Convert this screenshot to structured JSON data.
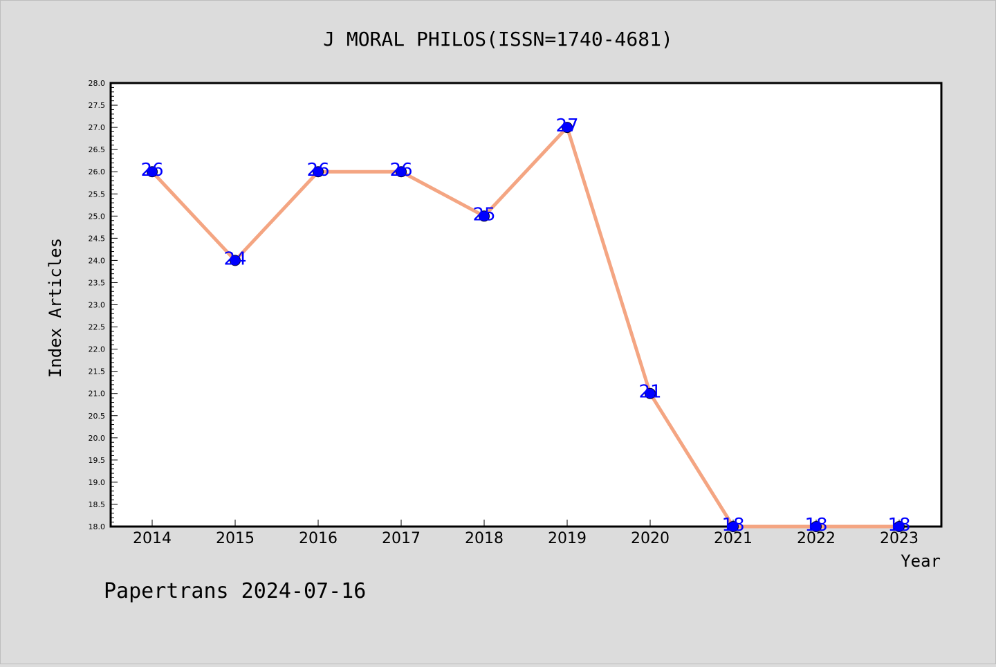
{
  "chart_data": {
    "type": "line",
    "title": "J MORAL PHILOS(ISSN=1740-4681)",
    "xlabel": "Year",
    "ylabel": "Index Articles",
    "x": [
      "2014",
      "2015",
      "2016",
      "2017",
      "2018",
      "2019",
      "2020",
      "2021",
      "2022",
      "2023"
    ],
    "series": [
      {
        "values": [
          26,
          24,
          26,
          26,
          25,
          27,
          21,
          18,
          18,
          18
        ],
        "line_color": "#f4a582",
        "marker_color": "#0000ff"
      }
    ],
    "data_labels": [
      "26",
      "24",
      "26",
      "26",
      "25",
      "27",
      "21",
      "18",
      "18",
      "18"
    ],
    "ylim": [
      18.0,
      28.0
    ],
    "y_ticks": [
      "18.0",
      "18.5",
      "19.0",
      "19.5",
      "20.0",
      "20.5",
      "21.0",
      "21.5",
      "22.0",
      "22.5",
      "23.0",
      "23.5",
      "24.0",
      "24.5",
      "25.0",
      "25.5",
      "26.0",
      "26.5",
      "27.0",
      "27.5",
      "28.0"
    ],
    "grid": false,
    "legend": "none"
  },
  "footer": {
    "watermark": "Papertrans 2024-07-16"
  },
  "colors": {
    "background": "#dcdcdc",
    "plot_background": "#ffffff",
    "line": "#f4a582",
    "marker": "#0000ff",
    "label": "#0000ff"
  }
}
